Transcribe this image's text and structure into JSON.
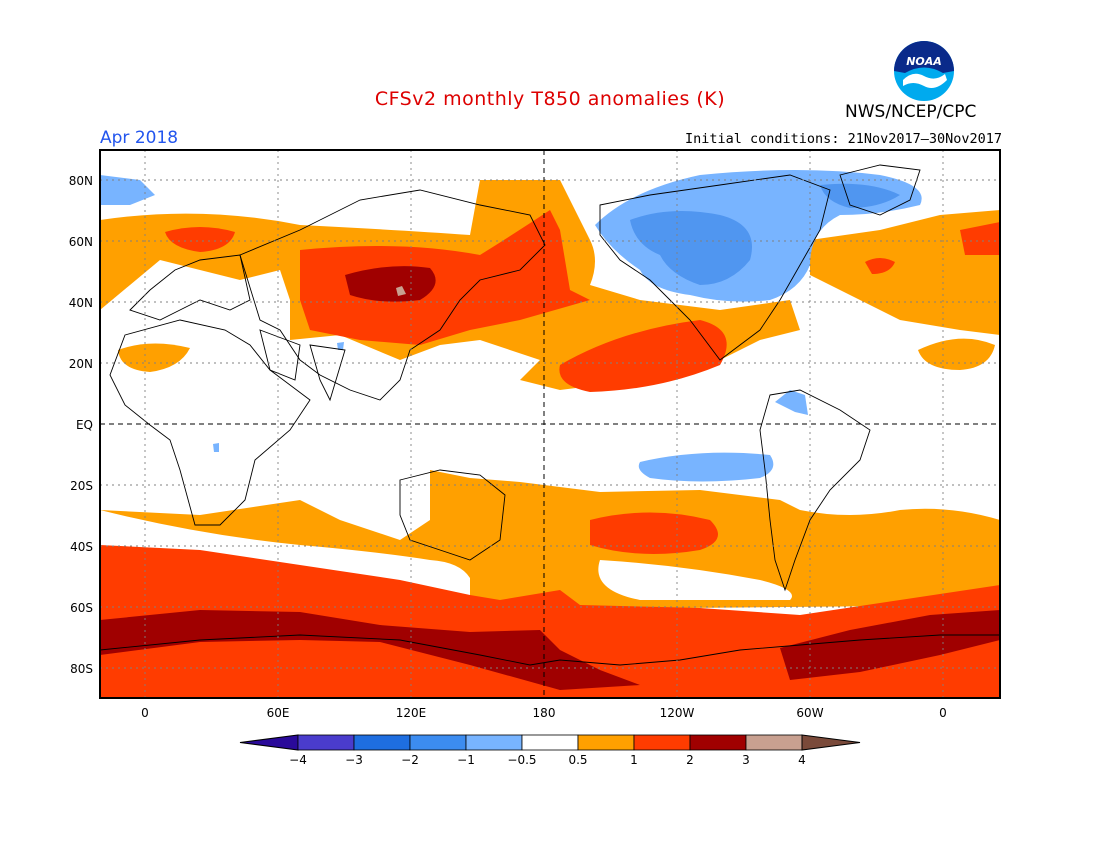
{
  "header": {
    "title": "CFSv2 monthly T850 anomalies (K)",
    "org": "NWS/NCEP/CPC",
    "period": "Apr 2018",
    "initial_conditions": "Initial conditions: 21Nov2017–30Nov2017",
    "logo_text": "NOAA"
  },
  "colors": {
    "title": "#dd0000",
    "period": "#2255ee",
    "pos_05_1": "#ffa000",
    "pos_1_2": "#ff3c00",
    "pos_2_3": "#a00000",
    "pos_3_4": "#c8a090",
    "neg_05": "#78b4ff",
    "neg_1": "#5096f0",
    "neg_2": "#1e6ee0"
  },
  "axes": {
    "lat_labels": [
      "80N",
      "60N",
      "40N",
      "20N",
      "EQ",
      "20S",
      "40S",
      "60S",
      "80S"
    ],
    "lon_labels": [
      "0",
      "60E",
      "120E",
      "180",
      "120W",
      "60W",
      "0"
    ]
  },
  "colorbar": {
    "labels": [
      "−4",
      "−3",
      "−2",
      "−1",
      "−0.5",
      "0.5",
      "1",
      "2",
      "3",
      "4"
    ],
    "colors": [
      "#2a0a9a",
      "#4a3ccc",
      "#1e6ee0",
      "#3c8cf0",
      "#78b4ff",
      "#ffffff",
      "#ffa000",
      "#ff3c00",
      "#a00000",
      "#c8a090",
      "#7a4a3a"
    ]
  }
}
